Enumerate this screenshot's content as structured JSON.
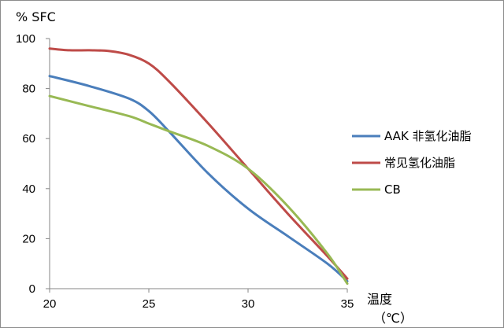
{
  "chart_data": {
    "type": "line",
    "ylabel": "% SFC",
    "xlabel_line1": "温度",
    "xlabel_line2": "（℃）",
    "xlim": [
      20,
      35
    ],
    "ylim": [
      0,
      100
    ],
    "x_ticks": [
      "20",
      "25",
      "30",
      "35"
    ],
    "y_ticks": [
      "0",
      "20",
      "40",
      "60",
      "80",
      "100"
    ],
    "grid": false,
    "legend_position": "right",
    "series": [
      {
        "name": "AAK 非氢化油脂",
        "color": "#4a7ebb",
        "x": [
          20,
          22,
          24,
          25,
          26,
          28,
          30,
          32,
          34,
          35
        ],
        "y": [
          85,
          81,
          76,
          71,
          63,
          46,
          32,
          21,
          10,
          3
        ]
      },
      {
        "name": "常见氢化油脂",
        "color": "#be4b48",
        "x": [
          20,
          21,
          22,
          23,
          24,
          25,
          26,
          28,
          30,
          32,
          34,
          35
        ],
        "y": [
          96,
          95.3,
          95.3,
          95,
          93.5,
          90,
          83,
          66,
          48,
          30,
          13,
          4
        ]
      },
      {
        "name": "CB",
        "color": "#98b954",
        "x": [
          20,
          22,
          24,
          25,
          26,
          28,
          30,
          32,
          34,
          35
        ],
        "y": [
          77,
          73,
          69,
          66,
          63,
          57,
          48,
          33,
          14,
          2
        ]
      }
    ]
  }
}
